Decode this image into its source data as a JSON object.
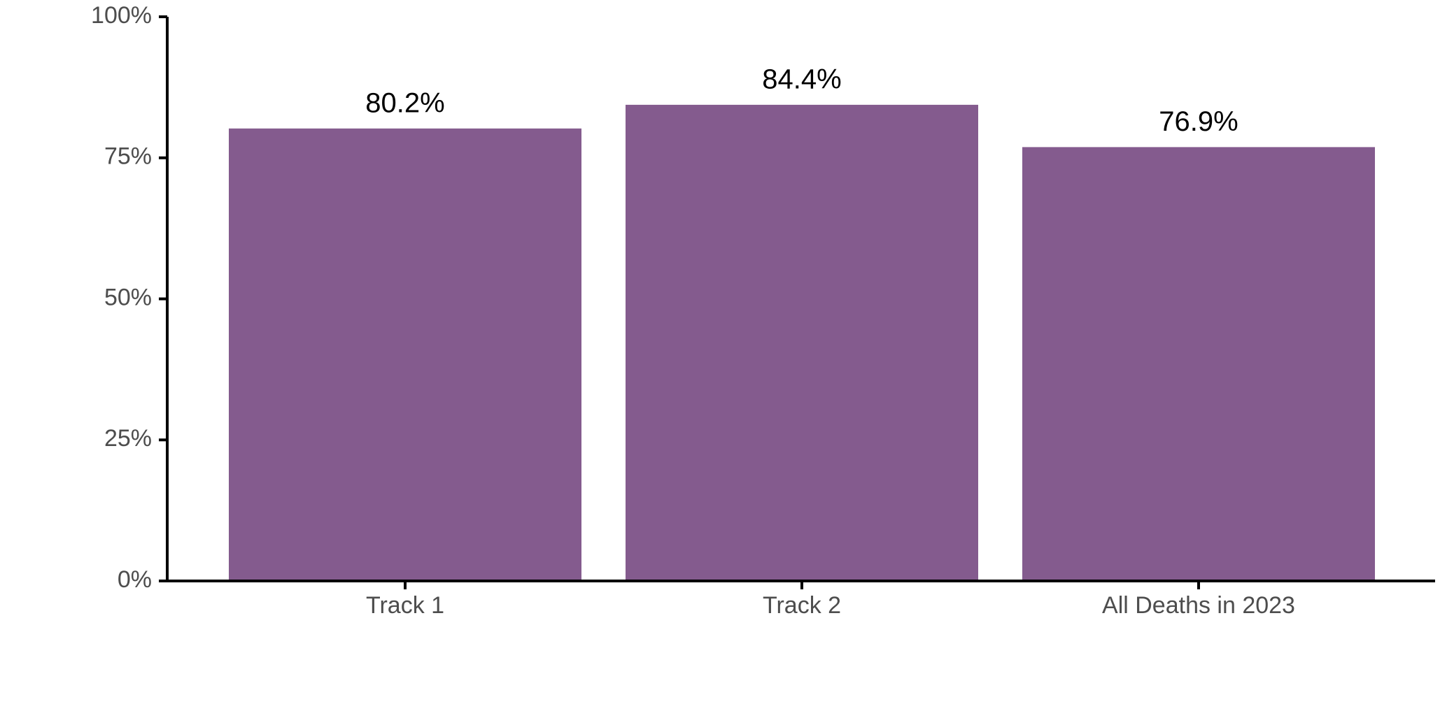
{
  "chart_data": {
    "type": "bar",
    "categories": [
      "Track 1",
      "Track 2",
      "All Deaths in 2023"
    ],
    "values": [
      80.2,
      84.4,
      76.9
    ],
    "value_labels": [
      "80.2%",
      "84.4%",
      "76.9%"
    ],
    "color": "#845b8e",
    "ylim": [
      0,
      100
    ],
    "yticks": [
      {
        "value": 0,
        "label": "0%"
      },
      {
        "value": 25,
        "label": "25%"
      },
      {
        "value": 50,
        "label": "50%"
      },
      {
        "value": 75,
        "label": "75%"
      },
      {
        "value": 100,
        "label": "100%"
      }
    ],
    "grid": false
  }
}
